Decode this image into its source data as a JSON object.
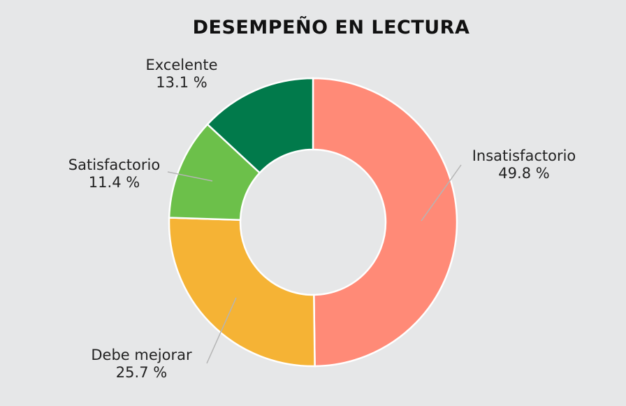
{
  "chart_data": {
    "type": "pie",
    "title": "DESEMPEÑO EN LECTURA",
    "slices": [
      {
        "name": "Insatisfactorio",
        "value": 49.8,
        "label": "49.8 %",
        "color": "#ff8a77"
      },
      {
        "name": "Debe mejorar",
        "value": 25.7,
        "label": "25.7 %",
        "color": "#f5b335"
      },
      {
        "name": "Satisfactorio",
        "value": 11.4,
        "label": "11.4 %",
        "color": "#6cc04a"
      },
      {
        "name": "Excelente",
        "value": 13.1,
        "label": "13.1 %",
        "color": "#017a4b"
      }
    ],
    "legend": "none",
    "background": "#e6e7e8"
  }
}
